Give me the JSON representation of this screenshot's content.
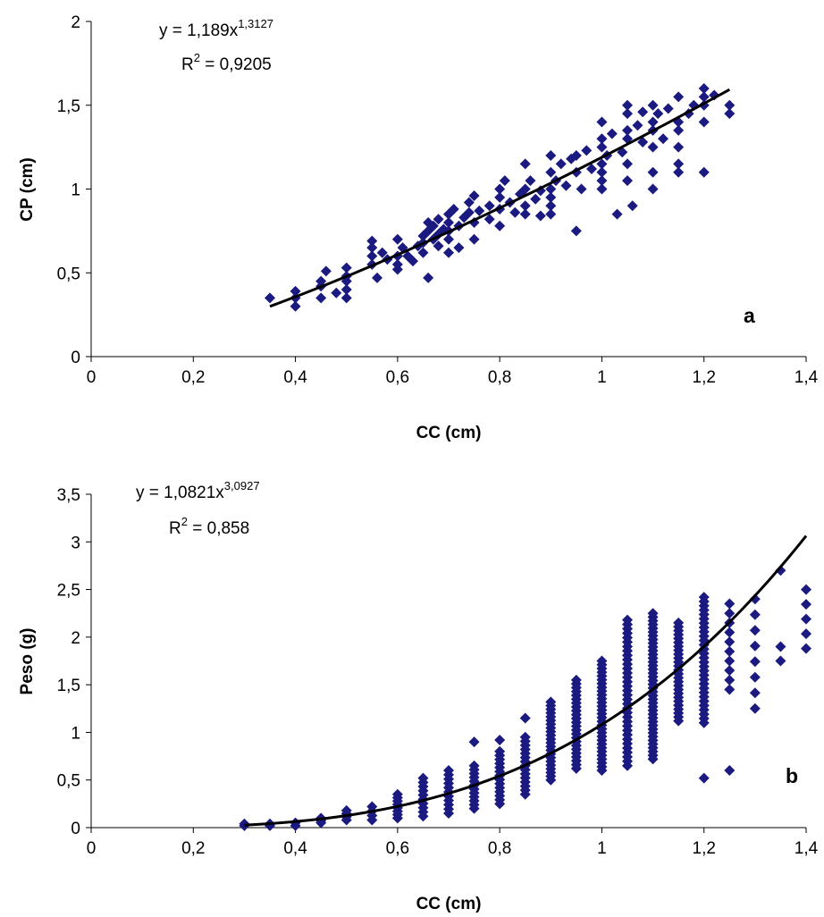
{
  "chart_data": [
    {
      "type": "scatter",
      "panel_label": "a",
      "xlabel": "CC (cm)",
      "ylabel": "CP (cm)",
      "xlim": [
        0,
        1.4
      ],
      "ylim": [
        0,
        2
      ],
      "x_ticks": [
        "0",
        "0,2",
        "0,4",
        "0,6",
        "0,8",
        "1",
        "1,2",
        "1,4"
      ],
      "y_ticks": [
        "0",
        "0,5",
        "1",
        "1,5",
        "2"
      ],
      "equation": {
        "prefix": "y = 1,189x",
        "exponent": "1,3127"
      },
      "r2": {
        "base": "R",
        "sup": "2",
        "value": " = 0,9205"
      },
      "trendline": {
        "type": "power",
        "a": 1.189,
        "b": 1.3127,
        "x_range": [
          0.35,
          1.25
        ]
      },
      "marker_color": "#1a1a80",
      "line_color": "#000000",
      "points": [
        [
          0.35,
          0.35
        ],
        [
          0.4,
          0.3
        ],
        [
          0.4,
          0.39
        ],
        [
          0.4,
          0.35
        ],
        [
          0.45,
          0.35
        ],
        [
          0.45,
          0.42
        ],
        [
          0.45,
          0.45
        ],
        [
          0.46,
          0.51
        ],
        [
          0.48,
          0.38
        ],
        [
          0.5,
          0.35
        ],
        [
          0.5,
          0.4
        ],
        [
          0.5,
          0.48
        ],
        [
          0.5,
          0.53
        ],
        [
          0.5,
          0.45
        ],
        [
          0.55,
          0.55
        ],
        [
          0.55,
          0.6
        ],
        [
          0.55,
          0.65
        ],
        [
          0.55,
          0.69
        ],
        [
          0.56,
          0.47
        ],
        [
          0.57,
          0.62
        ],
        [
          0.58,
          0.58
        ],
        [
          0.6,
          0.55
        ],
        [
          0.6,
          0.6
        ],
        [
          0.6,
          0.7
        ],
        [
          0.6,
          0.52
        ],
        [
          0.61,
          0.65
        ],
        [
          0.62,
          0.6
        ],
        [
          0.63,
          0.57
        ],
        [
          0.64,
          0.66
        ],
        [
          0.65,
          0.72
        ],
        [
          0.65,
          0.68
        ],
        [
          0.65,
          0.62
        ],
        [
          0.66,
          0.75
        ],
        [
          0.66,
          0.8
        ],
        [
          0.66,
          0.47
        ],
        [
          0.67,
          0.7
        ],
        [
          0.67,
          0.78
        ],
        [
          0.68,
          0.73
        ],
        [
          0.68,
          0.82
        ],
        [
          0.68,
          0.66
        ],
        [
          0.69,
          0.76
        ],
        [
          0.7,
          0.85
        ],
        [
          0.7,
          0.8
        ],
        [
          0.7,
          0.75
        ],
        [
          0.7,
          0.62
        ],
        [
          0.7,
          0.7
        ],
        [
          0.71,
          0.88
        ],
        [
          0.72,
          0.65
        ],
        [
          0.72,
          0.78
        ],
        [
          0.73,
          0.83
        ],
        [
          0.74,
          0.92
        ],
        [
          0.74,
          0.86
        ],
        [
          0.75,
          0.96
        ],
        [
          0.75,
          0.8
        ],
        [
          0.75,
          0.7
        ],
        [
          0.76,
          0.87
        ],
        [
          0.78,
          0.9
        ],
        [
          0.78,
          0.82
        ],
        [
          0.8,
          0.95
        ],
        [
          0.8,
          1.0
        ],
        [
          0.8,
          0.88
        ],
        [
          0.8,
          0.78
        ],
        [
          0.81,
          1.05
        ],
        [
          0.82,
          0.92
        ],
        [
          0.83,
          0.86
        ],
        [
          0.84,
          0.97
        ],
        [
          0.85,
          1.0
        ],
        [
          0.85,
          1.15
        ],
        [
          0.85,
          0.9
        ],
        [
          0.85,
          0.85
        ],
        [
          0.86,
          1.05
        ],
        [
          0.87,
          0.94
        ],
        [
          0.88,
          0.99
        ],
        [
          0.88,
          0.84
        ],
        [
          0.9,
          1.0
        ],
        [
          0.9,
          1.1
        ],
        [
          0.9,
          1.2
        ],
        [
          0.9,
          0.95
        ],
        [
          0.9,
          0.9
        ],
        [
          0.9,
          0.85
        ],
        [
          0.91,
          1.05
        ],
        [
          0.92,
          1.15
        ],
        [
          0.93,
          1.02
        ],
        [
          0.94,
          1.18
        ],
        [
          0.95,
          1.1
        ],
        [
          0.95,
          1.2
        ],
        [
          0.95,
          0.75
        ],
        [
          0.96,
          1.0
        ],
        [
          0.97,
          1.23
        ],
        [
          0.98,
          1.12
        ],
        [
          1.0,
          1.05
        ],
        [
          1.0,
          1.15
        ],
        [
          1.0,
          1.25
        ],
        [
          1.0,
          1.3
        ],
        [
          1.0,
          1.4
        ],
        [
          1.0,
          1.1
        ],
        [
          1.0,
          1.0
        ],
        [
          1.01,
          1.2
        ],
        [
          1.02,
          1.33
        ],
        [
          1.03,
          0.85
        ],
        [
          1.04,
          1.22
        ],
        [
          1.05,
          1.3
        ],
        [
          1.05,
          1.35
        ],
        [
          1.05,
          1.45
        ],
        [
          1.05,
          1.5
        ],
        [
          1.05,
          1.15
        ],
        [
          1.05,
          1.05
        ],
        [
          1.06,
          0.9
        ],
        [
          1.07,
          1.38
        ],
        [
          1.08,
          1.28
        ],
        [
          1.08,
          1.46
        ],
        [
          1.1,
          1.35
        ],
        [
          1.1,
          1.4
        ],
        [
          1.1,
          1.5
        ],
        [
          1.1,
          1.1
        ],
        [
          1.1,
          1.0
        ],
        [
          1.1,
          1.25
        ],
        [
          1.11,
          1.45
        ],
        [
          1.12,
          1.3
        ],
        [
          1.13,
          1.48
        ],
        [
          1.15,
          1.55
        ],
        [
          1.15,
          1.4
        ],
        [
          1.15,
          1.35
        ],
        [
          1.15,
          1.15
        ],
        [
          1.15,
          1.1
        ],
        [
          1.15,
          1.25
        ],
        [
          1.17,
          1.45
        ],
        [
          1.18,
          1.5
        ],
        [
          1.2,
          1.6
        ],
        [
          1.2,
          1.55
        ],
        [
          1.2,
          1.5
        ],
        [
          1.2,
          1.4
        ],
        [
          1.2,
          1.1
        ],
        [
          1.22,
          1.56
        ],
        [
          1.25,
          1.5
        ],
        [
          1.25,
          1.45
        ]
      ]
    },
    {
      "type": "scatter",
      "panel_label": "b",
      "xlabel": "CC (cm)",
      "ylabel": "Peso (g)",
      "xlim": [
        0,
        1.4
      ],
      "ylim": [
        0,
        3.5
      ],
      "x_ticks": [
        "0",
        "0,2",
        "0,4",
        "0,6",
        "0,8",
        "1",
        "1,2",
        "1,4"
      ],
      "y_ticks": [
        "0",
        "0,5",
        "1",
        "1,5",
        "2",
        "2,5",
        "3",
        "3,5"
      ],
      "equation": {
        "prefix": "y = 1,0821x",
        "exponent": "3,0927"
      },
      "r2": {
        "base": "R",
        "sup": "2",
        "value": " = 0,858"
      },
      "trendline": {
        "type": "power",
        "a": 1.0821,
        "b": 3.0927,
        "x_range": [
          0.3,
          1.4
        ]
      },
      "marker_color": "#1a1a80",
      "line_color": "#000000",
      "columns": [
        {
          "x": 0.3,
          "min": 0.02,
          "max": 0.04,
          "n": 2,
          "extra": []
        },
        {
          "x": 0.35,
          "min": 0.02,
          "max": 0.04,
          "n": 2,
          "extra": []
        },
        {
          "x": 0.4,
          "min": 0.02,
          "max": 0.05,
          "n": 2,
          "extra": []
        },
        {
          "x": 0.45,
          "min": 0.05,
          "max": 0.1,
          "n": 3,
          "extra": []
        },
        {
          "x": 0.5,
          "min": 0.08,
          "max": 0.18,
          "n": 4,
          "extra": []
        },
        {
          "x": 0.55,
          "min": 0.08,
          "max": 0.22,
          "n": 4,
          "extra": []
        },
        {
          "x": 0.6,
          "min": 0.1,
          "max": 0.35,
          "n": 8,
          "extra": []
        },
        {
          "x": 0.65,
          "min": 0.12,
          "max": 0.52,
          "n": 10,
          "extra": []
        },
        {
          "x": 0.7,
          "min": 0.15,
          "max": 0.6,
          "n": 11,
          "extra": []
        },
        {
          "x": 0.75,
          "min": 0.2,
          "max": 0.65,
          "n": 12,
          "extra": [
            0.9
          ]
        },
        {
          "x": 0.8,
          "min": 0.25,
          "max": 0.8,
          "n": 14,
          "extra": [
            0.92
          ]
        },
        {
          "x": 0.85,
          "min": 0.35,
          "max": 0.95,
          "n": 15,
          "extra": [
            1.15
          ]
        },
        {
          "x": 0.9,
          "min": 0.5,
          "max": 1.32,
          "n": 22,
          "extra": []
        },
        {
          "x": 0.95,
          "min": 0.62,
          "max": 1.55,
          "n": 24,
          "extra": []
        },
        {
          "x": 1.0,
          "min": 0.6,
          "max": 1.75,
          "n": 30,
          "extra": []
        },
        {
          "x": 1.05,
          "min": 0.65,
          "max": 2.18,
          "n": 34,
          "extra": []
        },
        {
          "x": 1.1,
          "min": 0.72,
          "max": 2.25,
          "n": 40,
          "extra": []
        },
        {
          "x": 1.15,
          "min": 1.12,
          "max": 2.15,
          "n": 26,
          "extra": []
        },
        {
          "x": 1.2,
          "min": 1.1,
          "max": 2.42,
          "n": 30,
          "extra": [
            0.52
          ]
        },
        {
          "x": 1.25,
          "min": 1.45,
          "max": 2.35,
          "n": 10,
          "extra": [
            0.6
          ]
        },
        {
          "x": 1.3,
          "min": 1.25,
          "max": 2.4,
          "n": 8,
          "extra": []
        },
        {
          "x": 1.35,
          "min": 1.75,
          "max": 1.9,
          "n": 2,
          "extra": [
            2.7
          ]
        },
        {
          "x": 1.4,
          "min": 1.88,
          "max": 2.5,
          "n": 5,
          "extra": []
        }
      ]
    }
  ]
}
